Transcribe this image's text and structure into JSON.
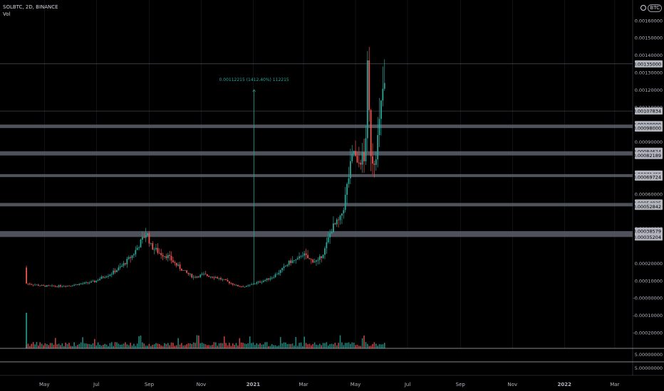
{
  "header": {
    "symbol": "SOLBTC, 2D, BINANCE",
    "volume_label": "Vol",
    "currency_button": "BTC"
  },
  "colors": {
    "bg": "#000000",
    "up": "#26a69a",
    "down": "#ef5350",
    "zone": "#5d606b",
    "grid": "#2a2e39",
    "axis_text": "#b2b5be",
    "measure": "#26a69a",
    "label_bg": "#b2b5be"
  },
  "annotation": {
    "text": "0.00112215 (1412.40%) 112215",
    "x": "2021-01-02",
    "from": 7.945e-05,
    "to": 0.0012016
  },
  "chart_data": {
    "type": "candlestick",
    "title": "SOLBTC, 2D, BINANCE",
    "x_ticks": [
      {
        "date": "2020-05-01",
        "label": "May"
      },
      {
        "date": "2020-07-01",
        "label": "Jul"
      },
      {
        "date": "2020-09-01",
        "label": "Sep"
      },
      {
        "date": "2020-11-01",
        "label": "Nov"
      },
      {
        "date": "2021-01-01",
        "label": "2021"
      },
      {
        "date": "2021-03-01",
        "label": "Mar"
      },
      {
        "date": "2021-05-01",
        "label": "May"
      },
      {
        "date": "2021-07-01",
        "label": "Jul"
      },
      {
        "date": "2021-09-01",
        "label": "Sep"
      },
      {
        "date": "2021-11-01",
        "label": "Nov"
      },
      {
        "date": "2022-01-01",
        "label": "2022"
      },
      {
        "date": "2022-03-01",
        "label": "Mar"
      }
    ],
    "x_range": [
      "2020-03-10",
      "2022-03-22"
    ],
    "y_range": [
      -0.00029,
      0.00171
    ],
    "y_ticks": [
      {
        "v": 0.0016,
        "label": "0.00160000"
      },
      {
        "v": 0.0015,
        "label": "0.00150000"
      },
      {
        "v": 0.0014,
        "label": "0.00140000"
      },
      {
        "v": 0.0013,
        "label": "0.00130000"
      },
      {
        "v": 0.0012,
        "label": "0.00120000"
      },
      {
        "v": 0.0011,
        "label": "0.00110000"
      },
      {
        "v": 0.0009,
        "label": "0.00090000"
      },
      {
        "v": 0.0006,
        "label": "0.00060000"
      },
      {
        "v": 0.0004,
        "label": "0.00040000"
      },
      {
        "v": 0.0002,
        "label": "0.00020000"
      },
      {
        "v": 0.0001,
        "label": "0.00010000"
      },
      {
        "v": 0.0,
        "label": "-0.00000000"
      },
      {
        "v": -0.0001,
        "label": "-0.00010000"
      },
      {
        "v": -0.0002,
        "label": "-0.00020000"
      }
    ],
    "price_labels": [
      {
        "v": 0.00135,
        "label": "0.00135000"
      },
      {
        "v": 0.00107834,
        "label": "0.00107834"
      },
      {
        "v": 0.001,
        "label": "0.00100000"
      },
      {
        "v": 0.00098,
        "label": "0.00098000"
      },
      {
        "v": 0.00084624,
        "label": "0.00084624"
      },
      {
        "v": 0.00082189,
        "label": "0.00082189"
      },
      {
        "v": 0.00071455,
        "label": "0.00071455"
      },
      {
        "v": 0.00069724,
        "label": "0.00069724"
      },
      {
        "v": 0.00054825,
        "label": "0.00054825"
      },
      {
        "v": 0.00052842,
        "label": "0.00052842"
      },
      {
        "v": 0.00038579,
        "label": "0.00038579"
      },
      {
        "v": 0.00035204,
        "label": "0.00035204"
      }
    ],
    "horizontal_lines": [
      0.00135,
      0.00107834
    ],
    "zones": [
      [
        0.00098,
        0.001
      ],
      [
        0.00082189,
        0.00084624
      ],
      [
        0.00069724,
        0.00071455
      ],
      [
        0.00052842,
        0.00054825
      ],
      [
        0.00035204,
        0.00038579
      ]
    ],
    "sub_pane_labels": [
      "5.00000000",
      "5.00000000"
    ],
    "series": [
      {
        "name": "SOLBTC",
        "points": [
          [
            "2020-04-10",
            0.000175
          ],
          [
            "2020-04-12",
            8.4e-05
          ],
          [
            "2020-04-20",
            7.8e-05
          ],
          [
            "2020-05-01",
            7e-05
          ],
          [
            "2020-05-15",
            6.8e-05
          ],
          [
            "2020-06-01",
            7.2e-05
          ],
          [
            "2020-06-15",
            8.2e-05
          ],
          [
            "2020-07-01",
            9.5e-05
          ],
          [
            "2020-07-10",
            0.00012
          ],
          [
            "2020-07-20",
            0.00014
          ],
          [
            "2020-08-01",
            0.00018
          ],
          [
            "2020-08-15",
            0.00025
          ],
          [
            "2020-08-25",
            0.00033
          ],
          [
            "2020-08-31",
            0.00038
          ],
          [
            "2020-09-05",
            0.0003
          ],
          [
            "2020-09-15",
            0.00026
          ],
          [
            "2020-09-25",
            0.00024
          ],
          [
            "2020-10-05",
            0.00019
          ],
          [
            "2020-10-15",
            0.00015
          ],
          [
            "2020-10-25",
            0.00012
          ],
          [
            "2020-11-05",
            0.000135
          ],
          [
            "2020-11-20",
            0.00012
          ],
          [
            "2020-12-01",
            0.0001
          ],
          [
            "2020-12-15",
            7e-05
          ],
          [
            "2020-12-25",
            6.5e-05
          ],
          [
            "2021-01-02",
            8e-05
          ],
          [
            "2021-01-15",
            0.0001
          ],
          [
            "2021-01-25",
            0.00012
          ],
          [
            "2021-02-05",
            0.00016
          ],
          [
            "2021-02-15",
            0.00021
          ],
          [
            "2021-02-25",
            0.00022
          ],
          [
            "2021-03-01",
            0.00026
          ],
          [
            "2021-03-10",
            0.00022
          ],
          [
            "2021-03-20",
            0.00021
          ],
          [
            "2021-03-28",
            0.00028
          ],
          [
            "2021-04-05",
            0.0004
          ],
          [
            "2021-04-15",
            0.00045
          ],
          [
            "2021-04-20",
            0.00055
          ],
          [
            "2021-04-25",
            0.0007
          ],
          [
            "2021-05-01",
            0.00085
          ],
          [
            "2021-05-05",
            0.00075
          ],
          [
            "2021-05-10",
            0.00082
          ],
          [
            "2021-05-13",
            0.00078
          ],
          [
            "2021-05-15",
            0.00095
          ],
          [
            "2021-05-17",
            0.0013
          ],
          [
            "2021-05-19",
            0.00105
          ],
          [
            "2021-05-21",
            0.00085
          ],
          [
            "2021-05-24",
            0.00078
          ],
          [
            "2021-05-27",
            0.00085
          ],
          [
            "2021-05-30",
            0.00095
          ],
          [
            "2021-06-02",
            0.0011
          ],
          [
            "2021-06-04",
            0.0012
          ]
        ]
      }
    ]
  }
}
